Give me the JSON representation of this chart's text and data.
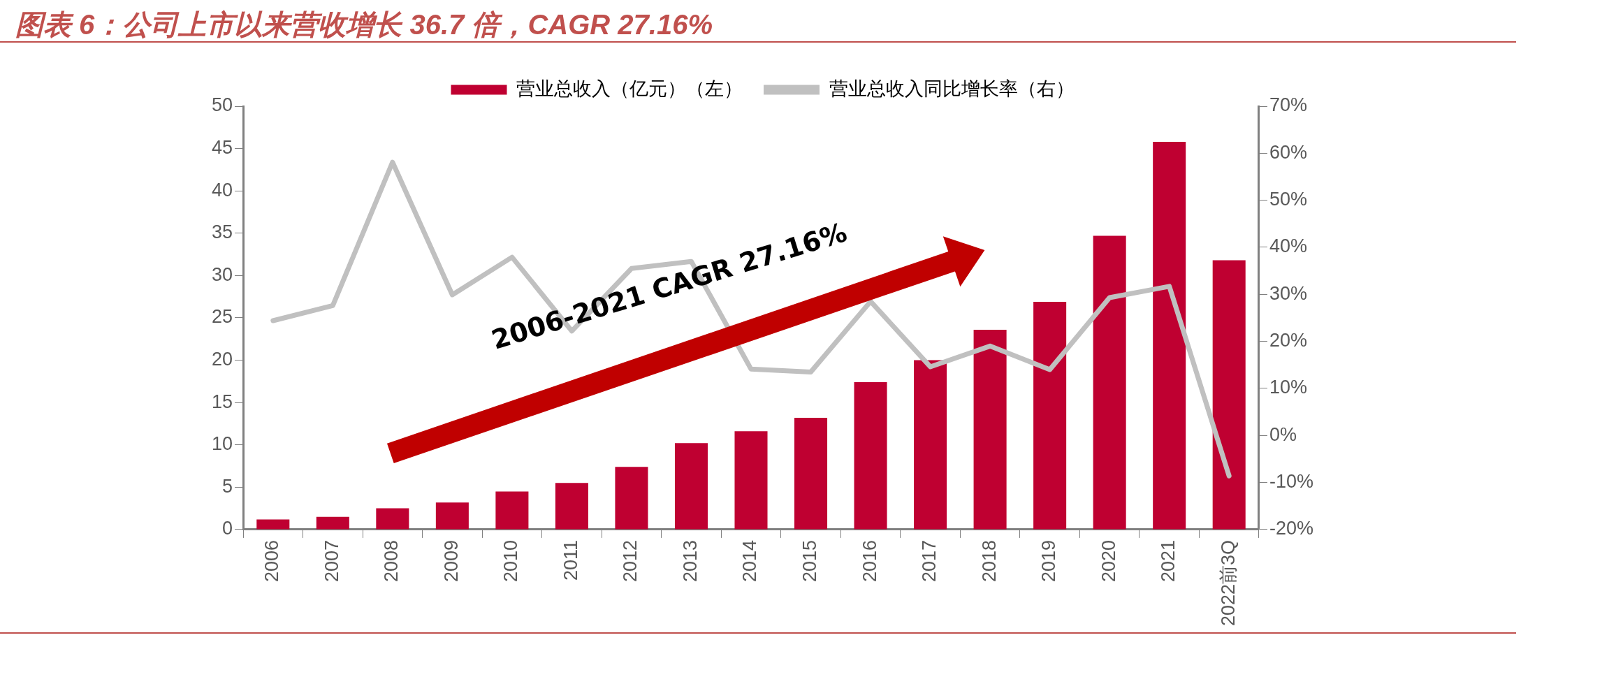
{
  "chart_data": {
    "type": "bar",
    "title": "图表 6：公司上市以来营收增长 36.7 倍，CAGR 27.16%",
    "categories": [
      "2006",
      "2007",
      "2008",
      "2009",
      "2010",
      "2011",
      "2012",
      "2013",
      "2014",
      "2015",
      "2016",
      "2017",
      "2018",
      "2019",
      "2020",
      "2021",
      "2022前3Q"
    ],
    "series": [
      {
        "name": "营业总收入（亿元）（左）",
        "color": "#bf0031",
        "values": [
          1.2,
          1.5,
          2.5,
          3.2,
          4.5,
          5.5,
          7.4,
          10.2,
          11.6,
          13.2,
          17.4,
          20.0,
          23.6,
          26.9,
          34.7,
          45.8,
          31.8
        ]
      },
      {
        "name": "营业总收入同比增长率（右）",
        "type": "line",
        "axis": "y2",
        "color": "#c0c0c0",
        "values": [
          24.4,
          27.6,
          58.1,
          29.9,
          37.9,
          22.2,
          35.5,
          37.0,
          14.1,
          13.5,
          28.5,
          14.6,
          19.0,
          14.0,
          29.3,
          31.7,
          -8.6
        ]
      }
    ],
    "ylim": [
      0,
      50
    ],
    "yticks": [
      0,
      5,
      10,
      15,
      20,
      25,
      30,
      35,
      40,
      45,
      50
    ],
    "y2lim": [
      -20,
      70
    ],
    "y2ticks": [
      {
        "value": -20,
        "label": "-20%"
      },
      {
        "value": -10,
        "label": "-10%"
      },
      {
        "value": 0,
        "label": "0%"
      },
      {
        "value": 10,
        "label": "10%"
      },
      {
        "value": 20,
        "label": "20%"
      },
      {
        "value": 30,
        "label": "30%"
      },
      {
        "value": 40,
        "label": "40%"
      },
      {
        "value": 50,
        "label": "50%"
      },
      {
        "value": 60,
        "label": "60%"
      },
      {
        "value": 70,
        "label": "70%"
      }
    ],
    "annotations": [
      "2006-2021 CAGR 27.16%"
    ],
    "grid": false,
    "legend": "top",
    "marker": "none",
    "line_style": "solid"
  }
}
